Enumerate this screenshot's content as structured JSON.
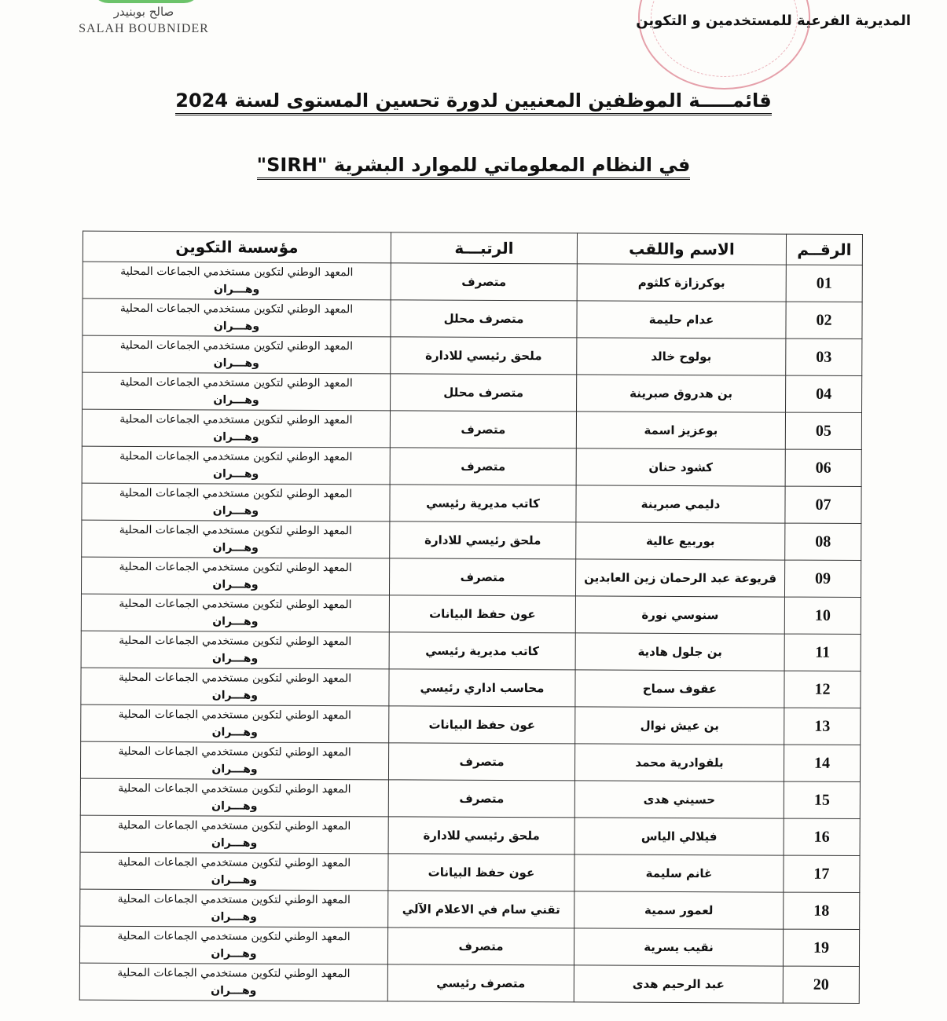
{
  "logo": {
    "arabic": "صالح بوبنيدر",
    "latin": "SALAH BOUBNIDER"
  },
  "stamp": {
    "color": "#e08a96"
  },
  "header": {
    "directorate": "المديرية الفرعية للمستخدمين و التكوين"
  },
  "title": {
    "line1": "قائمـــــة الموظفين المعنيين لدورة تحسين المستوى لسنة 2024",
    "line2": "في  النظام المعلوماتي للموارد البشرية \"SIRH\""
  },
  "table": {
    "headers": {
      "number": "الرقــم",
      "name": "الاسم واللقب",
      "rank": "الرتبـــة",
      "institution": "مؤسسة التكوين"
    },
    "institution_line1": "المعهد الوطني لتكوين مستخدمي الجماعات المحلية",
    "institution_line2": "وهـــران",
    "rows": [
      {
        "number": "01",
        "name": "بوكرزازة كلثوم",
        "rank": "متصرف"
      },
      {
        "number": "02",
        "name": "عدام حليمة",
        "rank": "متصرف محلل"
      },
      {
        "number": "03",
        "name": "بولوح خالد",
        "rank": "ملحق رئيسي للادارة"
      },
      {
        "number": "04",
        "name": "بن هدروق صبرينة",
        "rank": "متصرف محلل"
      },
      {
        "number": "05",
        "name": "بوعزيز اسمة",
        "rank": "متصرف"
      },
      {
        "number": "06",
        "name": "كشود حنان",
        "rank": "متصرف"
      },
      {
        "number": "07",
        "name": "دليمي صبرينة",
        "rank": "كاتب مديرية رئيسي"
      },
      {
        "number": "08",
        "name": "بوربيع عالية",
        "rank": "ملحق رئيسي للادارة"
      },
      {
        "number": "09",
        "name": "قريوعة عبد الرحمان زين العابدين",
        "rank": "متصرف"
      },
      {
        "number": "10",
        "name": "سنوسي نورة",
        "rank": "عون حفظ البيانات"
      },
      {
        "number": "11",
        "name": "بن جلول هادية",
        "rank": "كاتب مديرية رئيسي"
      },
      {
        "number": "12",
        "name": "عقوف سماح",
        "rank": "محاسب اداري رئيسي"
      },
      {
        "number": "13",
        "name": "بن عيش نوال",
        "rank": "عون حفظ البيانات"
      },
      {
        "number": "14",
        "name": "بلقوادرية محمد",
        "rank": "متصرف"
      },
      {
        "number": "15",
        "name": "حسيني هدى",
        "rank": "متصرف"
      },
      {
        "number": "16",
        "name": "فيلالي الياس",
        "rank": "ملحق رئيسي للادارة"
      },
      {
        "number": "17",
        "name": "غانم سليمة",
        "rank": "عون حفظ البيانات"
      },
      {
        "number": "18",
        "name": "لعمور سمية",
        "rank": "تقني سام في الاعلام الآلي"
      },
      {
        "number": "19",
        "name": "نقيب يسرية",
        "rank": "متصرف"
      },
      {
        "number": "20",
        "name": "عبد الرحيم هدى",
        "rank": "متصرف رئيسي"
      }
    ]
  }
}
